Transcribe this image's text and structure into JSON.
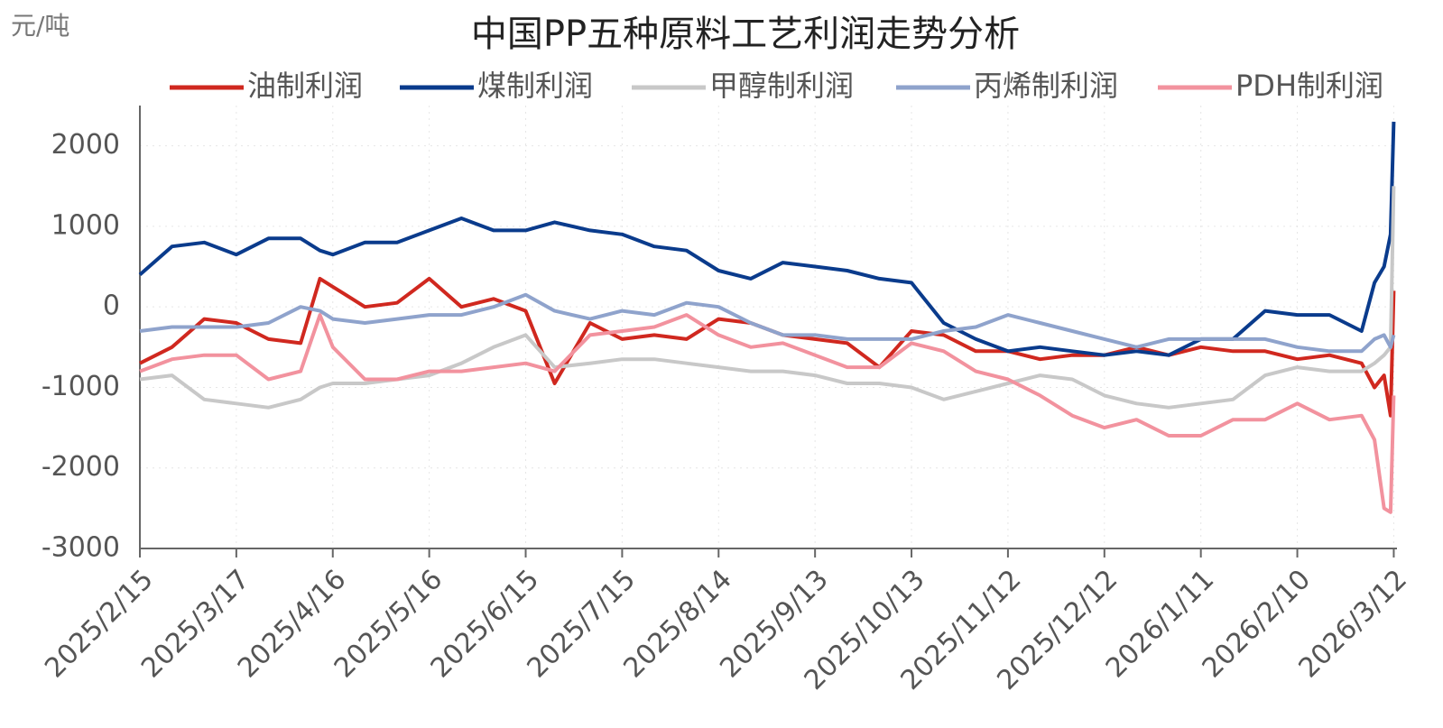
{
  "chart_data": {
    "type": "line",
    "title": "中国PP五种原料工艺利润走势分析",
    "y_unit": "元/吨",
    "x": [
      "2025/2/15",
      "2025/2/25",
      "2025/3/7",
      "2025/3/17",
      "2025/3/27",
      "2025/4/6",
      "2025/4/12",
      "2025/4/16",
      "2025/4/26",
      "2025/5/6",
      "2025/5/16",
      "2025/5/26",
      "2025/6/5",
      "2025/6/15",
      "2025/6/24",
      "2025/7/5",
      "2025/7/15",
      "2025/7/25",
      "2025/8/4",
      "2025/8/14",
      "2025/8/24",
      "2025/9/3",
      "2025/9/13",
      "2025/9/23",
      "2025/10/3",
      "2025/10/13",
      "2025/10/23",
      "2025/11/2",
      "2025/11/12",
      "2025/11/22",
      "2025/12/2",
      "2025/12/12",
      "2025/12/22",
      "2026/1/1",
      "2026/1/11",
      "2026/1/21",
      "2026/1/31",
      "2026/2/10",
      "2026/2/20",
      "2026/3/2",
      "2026/3/6",
      "2026/3/9",
      "2026/3/11",
      "2026/3/12"
    ],
    "series": [
      {
        "name": "油制利润",
        "color": "#d0281f",
        "values": [
          -700,
          -500,
          -150,
          -200,
          -400,
          -450,
          350,
          250,
          0,
          50,
          350,
          0,
          100,
          -50,
          -950,
          -200,
          -400,
          -350,
          -400,
          -150,
          -200,
          -350,
          -400,
          -450,
          -750,
          -300,
          -350,
          -550,
          -550,
          -650,
          -600,
          -600,
          -500,
          -600,
          -500,
          -550,
          -550,
          -650,
          -600,
          -700,
          -1000,
          -850,
          -1350,
          200
        ]
      },
      {
        "name": "煤制利润",
        "color": "#0a3b8c",
        "values": [
          400,
          750,
          800,
          650,
          850,
          850,
          700,
          650,
          800,
          800,
          950,
          1100,
          950,
          950,
          1050,
          950,
          900,
          750,
          700,
          450,
          350,
          550,
          500,
          450,
          350,
          300,
          -200,
          -400,
          -550,
          -500,
          -550,
          -600,
          -550,
          -600,
          -400,
          -400,
          -50,
          -100,
          -100,
          -300,
          300,
          500,
          900,
          2300
        ]
      },
      {
        "name": "甲醇制利润",
        "color": "#c8c8c8",
        "values": [
          -900,
          -850,
          -1150,
          -1200,
          -1250,
          -1150,
          -1000,
          -950,
          -950,
          -900,
          -850,
          -700,
          -500,
          -350,
          -750,
          -700,
          -650,
          -650,
          -700,
          -750,
          -800,
          -800,
          -850,
          -950,
          -950,
          -1000,
          -1150,
          -1050,
          -950,
          -850,
          -900,
          -1100,
          -1200,
          -1250,
          -1200,
          -1150,
          -850,
          -750,
          -800,
          -800,
          -700,
          -600,
          -500,
          1500
        ]
      },
      {
        "name": "丙烯制利润",
        "color": "#8fa3cc",
        "values": [
          -300,
          -250,
          -250,
          -250,
          -200,
          0,
          -50,
          -150,
          -200,
          -150,
          -100,
          -100,
          0,
          150,
          -50,
          -150,
          -50,
          -100,
          50,
          0,
          -200,
          -350,
          -350,
          -400,
          -400,
          -400,
          -300,
          -250,
          -100,
          -200,
          -300,
          -400,
          -500,
          -400,
          -400,
          -400,
          -400,
          -500,
          -550,
          -550,
          -400,
          -350,
          -500,
          -350
        ]
      },
      {
        "name": "PDH制利润",
        "color": "#f2929e",
        "values": [
          -800,
          -650,
          -600,
          -600,
          -900,
          -800,
          -100,
          -500,
          -900,
          -900,
          -800,
          -800,
          -750,
          -700,
          -800,
          -350,
          -300,
          -250,
          -100,
          -350,
          -500,
          -450,
          -600,
          -750,
          -750,
          -450,
          -550,
          -800,
          -900,
          -1100,
          -1350,
          -1500,
          -1400,
          -1600,
          -1600,
          -1400,
          -1400,
          -1200,
          -1400,
          -1350,
          -1650,
          -2500,
          -2550,
          -1100
        ]
      }
    ],
    "xlim": [
      "2025/2/15",
      "2026/3/13"
    ],
    "xticks": [
      "2025/2/15",
      "2025/3/17",
      "2025/4/16",
      "2025/5/16",
      "2025/6/15",
      "2025/7/15",
      "2025/8/14",
      "2025/9/13",
      "2025/10/13",
      "2025/11/12",
      "2025/12/12",
      "2026/1/11",
      "2026/2/10",
      "2026/3/12"
    ],
    "ylim": [
      -3000,
      2500
    ],
    "yticks": [
      -3000,
      -2000,
      -1000,
      0,
      1000,
      2000
    ],
    "grid": true
  }
}
